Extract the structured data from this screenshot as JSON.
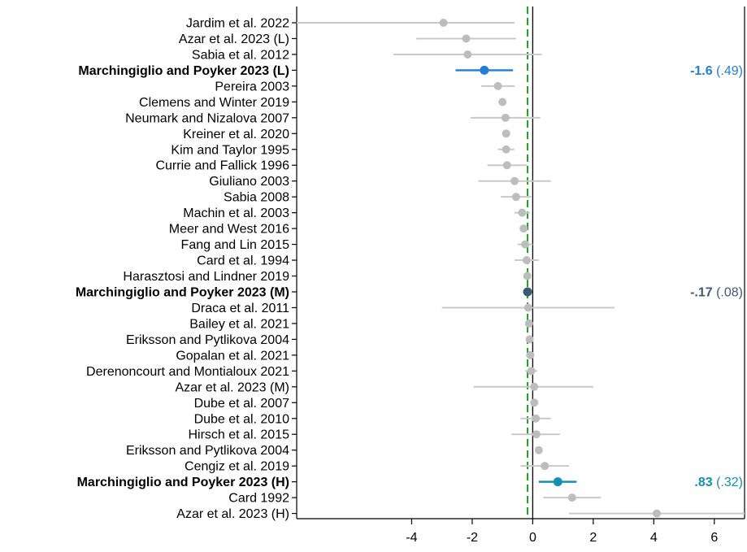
{
  "chart_data": {
    "type": "forest",
    "xlabel": "",
    "ylabel": "",
    "xlim": [
      -7.8,
      7.0
    ],
    "xticks": [
      -4,
      -2,
      0,
      2,
      4,
      6
    ],
    "xtick_labels": [
      "-4",
      "-2",
      "0",
      "2",
      "4",
      "6"
    ],
    "zero_line": 0,
    "mean_line": -0.17,
    "grid": false,
    "colors": {
      "default_point": "#bdbdbd",
      "default_ci": "#c9c9c9",
      "low": "#1f7fd8",
      "mid": "#3a5a78",
      "high": "#138fb5",
      "mean_line": "#1fa11f",
      "zero_line": "#000000"
    },
    "studies": [
      {
        "label": "Jardim et al. 2022",
        "est": -2.95,
        "lo": -7.8,
        "hi": -0.6
      },
      {
        "label": "Azar et al. 2023 (L)",
        "est": -2.2,
        "lo": -3.85,
        "hi": -0.55
      },
      {
        "label": "Sabia et al. 2012",
        "est": -2.15,
        "lo": -4.6,
        "hi": 0.3
      },
      {
        "label": "Marchingiglio and Poyker 2023 (L)",
        "est": -1.6,
        "lo": -2.55,
        "hi": -0.65,
        "highlight": "low",
        "annotation": {
          "value": "-1.6",
          "se": "(.49)"
        }
      },
      {
        "label": "Pereira 2003",
        "est": -1.15,
        "lo": -1.7,
        "hi": -0.6
      },
      {
        "label": "Clemens and Winter 2019",
        "est": -1.0,
        "lo": -1.05,
        "hi": -0.95
      },
      {
        "label": "Neumark and Nizalova 2007",
        "est": -0.9,
        "lo": -2.05,
        "hi": 0.25
      },
      {
        "label": "Kreiner et al. 2020",
        "est": -0.88,
        "lo": -0.95,
        "hi": -0.81
      },
      {
        "label": "Kim and Taylor 1995",
        "est": -0.88,
        "lo": -1.15,
        "hi": -0.61
      },
      {
        "label": "Currie and Fallick 1996",
        "est": -0.85,
        "lo": -1.5,
        "hi": -0.2
      },
      {
        "label": "Giuliano 2003",
        "est": -0.6,
        "lo": -1.8,
        "hi": 0.6
      },
      {
        "label": "Sabia 2008",
        "est": -0.55,
        "lo": -1.05,
        "hi": -0.05
      },
      {
        "label": "Machin et al. 2003",
        "est": -0.35,
        "lo": -0.6,
        "hi": -0.1
      },
      {
        "label": "Meer and West 2016",
        "est": -0.3,
        "lo": -0.38,
        "hi": -0.22
      },
      {
        "label": "Fang and Lin 2015",
        "est": -0.25,
        "lo": -0.5,
        "hi": 0.0
      },
      {
        "label": "Card et al. 1994",
        "est": -0.2,
        "lo": -0.6,
        "hi": 0.2
      },
      {
        "label": "Harasztosi and Lindner 2019",
        "est": -0.18,
        "lo": -0.22,
        "hi": -0.14
      },
      {
        "label": "Marchingiglio and Poyker 2023 (M)",
        "est": -0.17,
        "lo": -0.32,
        "hi": -0.02,
        "highlight": "mid",
        "annotation": {
          "value": "-.17",
          "se": "(.08)"
        }
      },
      {
        "label": "Draca et al. 2011",
        "est": -0.15,
        "lo": -3.0,
        "hi": 2.7
      },
      {
        "label": "Bailey et al. 2021",
        "est": -0.12,
        "lo": -0.2,
        "hi": -0.04
      },
      {
        "label": "Eriksson and Pytlikova 2004",
        "est": -0.1,
        "lo": -0.2,
        "hi": 0.0
      },
      {
        "label": "Gopalan et al. 2021",
        "est": -0.08,
        "lo": -0.15,
        "hi": -0.01
      },
      {
        "label": "Derenoncourt and Montialoux 2021",
        "est": -0.05,
        "lo": -0.25,
        "hi": 0.15
      },
      {
        "label": "Azar et al. 2023 (M)",
        "est": 0.05,
        "lo": -1.95,
        "hi": 2.0
      },
      {
        "label": "Dube et al. 2007",
        "est": 0.05,
        "lo": -0.05,
        "hi": 0.15
      },
      {
        "label": "Dube et al. 2010",
        "est": 0.1,
        "lo": -0.4,
        "hi": 0.6
      },
      {
        "label": "Hirsch et al. 2015",
        "est": 0.12,
        "lo": -0.7,
        "hi": 0.9
      },
      {
        "label": "Eriksson and Pytlikova 2004",
        "est": 0.2,
        "lo": 0.1,
        "hi": 0.3
      },
      {
        "label": "Cengiz et al. 2019",
        "est": 0.4,
        "lo": -0.4,
        "hi": 1.2
      },
      {
        "label": "Marchingiglio and Poyker 2023 (H)",
        "est": 0.83,
        "lo": 0.2,
        "hi": 1.45,
        "highlight": "high",
        "annotation": {
          "value": ".83",
          "se": "(.32)"
        }
      },
      {
        "label": "Card 1992",
        "est": 1.3,
        "lo": 0.35,
        "hi": 2.25
      },
      {
        "label": "Azar et al. 2023 (H)",
        "est": 4.1,
        "lo": 1.2,
        "hi": 7.0
      }
    ]
  }
}
